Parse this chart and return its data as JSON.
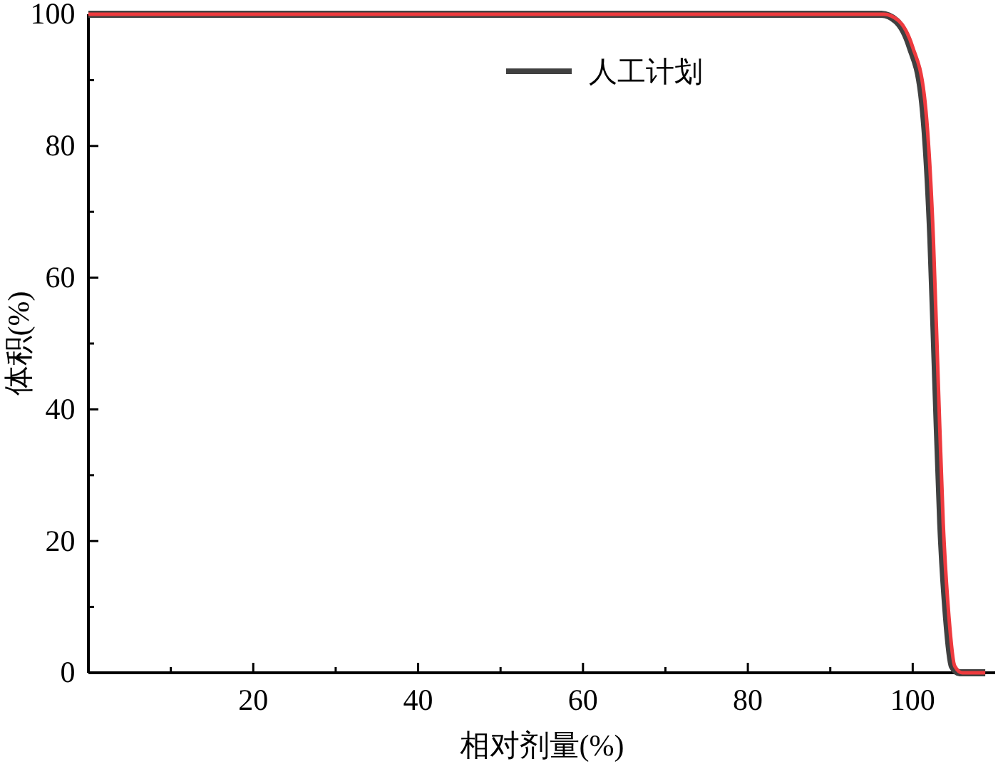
{
  "chart_data": {
    "type": "line",
    "xlabel": "相对剂量(%)",
    "ylabel": "体积(%)",
    "xlim": [
      0,
      110
    ],
    "ylim": [
      0,
      100
    ],
    "xticks": [
      {
        "value": 10,
        "label": null
      },
      20,
      {
        "value": 30,
        "label": null
      },
      40,
      {
        "value": 50,
        "label": null
      },
      60,
      {
        "value": 70,
        "label": null
      },
      80,
      {
        "value": 90,
        "label": null
      },
      100
    ],
    "yticks": [
      0,
      {
        "value": 10,
        "label": null
      },
      20,
      {
        "value": 30,
        "label": null
      },
      40,
      {
        "value": 50,
        "label": null
      },
      60,
      {
        "value": 70,
        "label": null
      },
      80,
      {
        "value": 90,
        "label": null
      },
      100
    ],
    "grid": false,
    "legend": "top right",
    "marker": "none",
    "line_style": "solid",
    "series": [
      {
        "name": "人工计划",
        "color": "#404040",
        "x": [
          0,
          94,
          96.2,
          98,
          99.7,
          101.1,
          102.2,
          102.8,
          103.4,
          104.1,
          104.8,
          105.7,
          108.8
        ],
        "values": [
          100,
          100,
          100,
          99,
          95,
          87.7,
          66,
          44,
          22.7,
          8.4,
          1,
          0,
          0
        ]
      },
      {
        "color": "#ee3a3e",
        "x": [
          0,
          94,
          96.5,
          98.3,
          100,
          101.4,
          102.5,
          103.1,
          103.7,
          104.4,
          105.1,
          106,
          108.8
        ],
        "values": [
          100,
          100,
          100,
          99,
          95,
          87.7,
          66,
          44,
          22.7,
          8.4,
          1,
          0,
          0
        ]
      }
    ]
  }
}
